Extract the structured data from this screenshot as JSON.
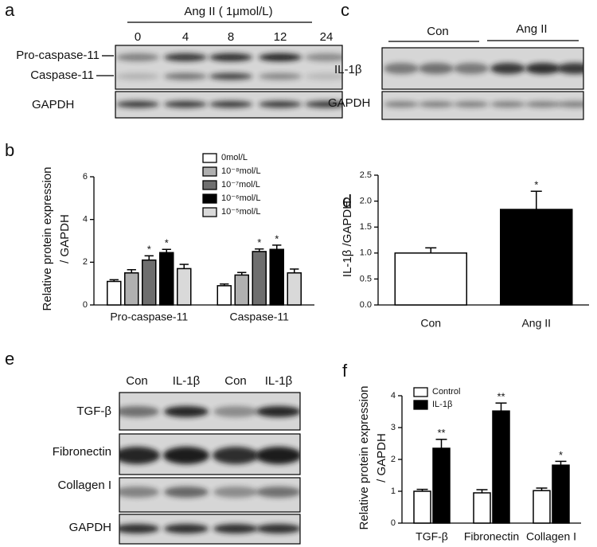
{
  "panel_labels": [
    "a",
    "b",
    "c",
    "d",
    "e",
    "f"
  ],
  "blot_a": {
    "treatment": "Ang II ( 1μmol/L)",
    "lanes": [
      "0",
      "4",
      "8",
      "12",
      "24"
    ],
    "rows": [
      "Pro-caspase-11",
      "Caspase-11",
      "GAPDH"
    ]
  },
  "blot_c": {
    "groups": [
      "Con",
      "Ang II"
    ],
    "rows": [
      "IL-1β",
      "GAPDH"
    ]
  },
  "blot_e": {
    "lanes": [
      "Con",
      "IL-1β",
      "Con",
      "IL-1β"
    ],
    "rows": [
      "TGF-β",
      "Fibronectin",
      "Collagen I",
      "GAPDH"
    ]
  },
  "chart_data": [
    {
      "type": "bar",
      "y_label": [
        "Relative protein expression",
        "/ GAPDH"
      ],
      "categories": [
        "Pro-caspase-11",
        "Caspase-11"
      ],
      "series": [
        {
          "name": "0mol/L",
          "color": "#ffffff",
          "values": [
            1.1,
            0.9
          ],
          "errors": [
            0.08,
            0.08
          ]
        },
        {
          "name": "10⁻⁸mol/L",
          "color": "#b0b0b0",
          "values": [
            1.5,
            1.4
          ],
          "errors": [
            0.15,
            0.12
          ]
        },
        {
          "name": "10⁻⁷mol/L",
          "color": "#6e6e6e",
          "values": [
            2.1,
            2.5
          ],
          "errors": [
            0.2,
            0.12
          ],
          "markers": [
            "*",
            "*"
          ]
        },
        {
          "name": "10⁻⁶mol/L",
          "color": "#000000",
          "values": [
            2.45,
            2.6
          ],
          "errors": [
            0.15,
            0.2
          ],
          "markers": [
            "*",
            "*"
          ]
        },
        {
          "name": "10⁻⁵mol/L",
          "color": "#d9d9d9",
          "values": [
            1.7,
            1.5
          ],
          "errors": [
            0.2,
            0.18
          ]
        }
      ],
      "ylim": [
        0,
        6
      ],
      "yticks": [
        0,
        2,
        4,
        6
      ]
    },
    {
      "type": "bar",
      "y_label": [
        "IL-1β /GAPDH"
      ],
      "categories": [
        "Con",
        "Ang II"
      ],
      "values": [
        1.0,
        1.84
      ],
      "errors": [
        0.1,
        0.35
      ],
      "colors": [
        "#ffffff",
        "#000000"
      ],
      "markers": [
        null,
        "*"
      ],
      "ylim": [
        0,
        2.5
      ],
      "yticks": [
        {
          "value": 0,
          "label": "0.0"
        },
        {
          "value": 0.5,
          "label": "0.5"
        },
        {
          "value": 1,
          "label": "1.0"
        },
        {
          "value": 1.5,
          "label": "1.5"
        },
        {
          "value": 2,
          "label": "2.0"
        },
        {
          "value": 2.5,
          "label": "2.5"
        }
      ]
    },
    {
      "type": "bar",
      "y_label": [
        "Relative protein expression",
        "/ GAPDH"
      ],
      "categories": [
        "TGF-β",
        "Fibronectin",
        "Collagen I"
      ],
      "series": [
        {
          "name": "Control",
          "color": "#ffffff",
          "values": [
            1.0,
            0.95,
            1.02
          ],
          "errors": [
            0.06,
            0.1,
            0.08
          ]
        },
        {
          "name": "IL-1β",
          "color": "#000000",
          "values": [
            2.35,
            3.52,
            1.82
          ],
          "errors": [
            0.28,
            0.25,
            0.12
          ],
          "markers": [
            "**",
            "**",
            "*"
          ]
        }
      ],
      "ylim": [
        0,
        4
      ],
      "yticks": [
        0,
        1,
        2,
        3,
        4
      ]
    }
  ]
}
